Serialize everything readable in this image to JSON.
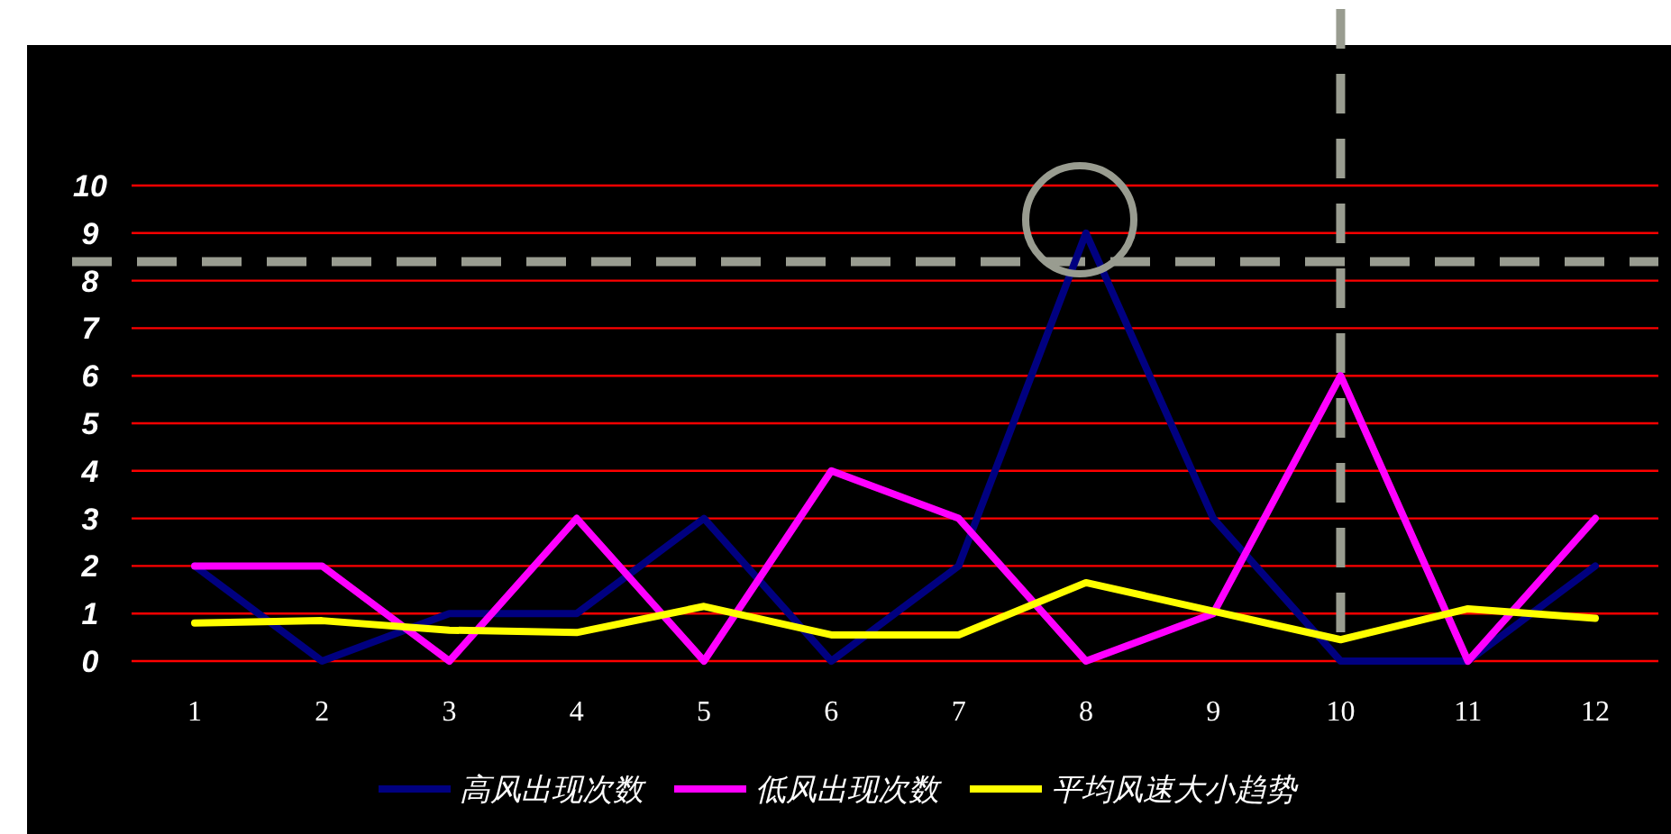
{
  "chart_data": {
    "type": "line",
    "categories": [
      "1",
      "2",
      "3",
      "4",
      "5",
      "6",
      "7",
      "8",
      "9",
      "10",
      "11",
      "12"
    ],
    "series": [
      {
        "name": "高风出现次数",
        "color": "#000080",
        "values": [
          2,
          0,
          1,
          1,
          3,
          0,
          2,
          9,
          3,
          0,
          0,
          2
        ]
      },
      {
        "name": "低风出现次数",
        "color": "#ff00ff",
        "values": [
          2,
          2,
          0,
          3,
          0,
          4,
          3,
          0,
          1,
          6,
          0,
          3
        ]
      },
      {
        "name": "平均风速大小趋势",
        "color": "#ffff00",
        "values": [
          0.8,
          0.85,
          0.65,
          0.6,
          1.15,
          0.55,
          0.55,
          1.65,
          1.05,
          0.45,
          1.1,
          0.9
        ]
      }
    ],
    "ylim": [
      0,
      10
    ],
    "yticks": [
      0,
      1,
      2,
      3,
      4,
      5,
      6,
      7,
      8,
      9,
      10
    ],
    "grid": "y",
    "legend": "bottom",
    "ref_lines": [
      {
        "axis": "y",
        "value": 8.4,
        "color": "#999c90",
        "line_style": "dashed"
      },
      {
        "axis": "x",
        "value": "10",
        "color": "#999c90",
        "line_style": "dashed"
      }
    ]
  }
}
